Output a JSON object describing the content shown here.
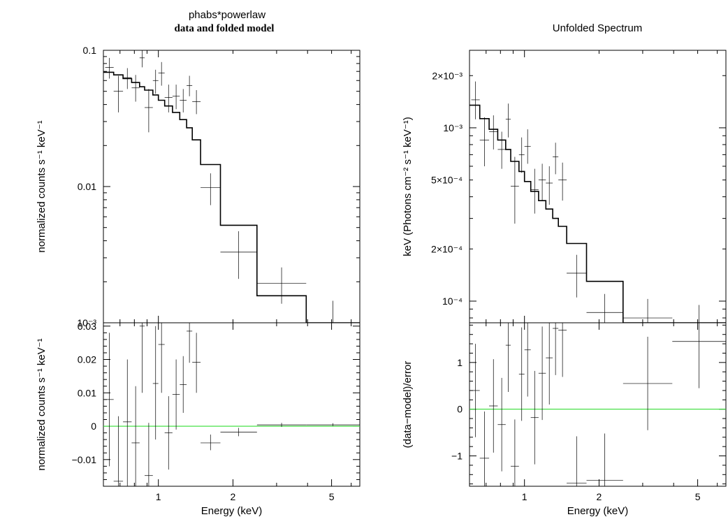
{
  "titles": {
    "left_main": "phabs*powerlaw",
    "left_sub": "data and folded model",
    "right_main": "Unfolded Spectrum"
  },
  "chart_data": [
    {
      "id": "tl",
      "type": "scatter",
      "xscale": "log",
      "yscale": "log",
      "xlim": [
        0.6,
        6.5
      ],
      "ylim": [
        0.001,
        0.1
      ],
      "xlabel": "",
      "ylabel": "normalized counts s⁻¹ keV⁻¹",
      "yticks": [
        {
          "v": 0.1,
          "label": "0.1"
        },
        {
          "v": 0.01,
          "label": "0.01"
        },
        {
          "v": 0.001,
          "label": "10⁻³"
        }
      ],
      "xticks": [],
      "data": [
        {
          "xlo": 0.61,
          "xhi": 0.66,
          "y": 0.075,
          "ylo": 0.062,
          "yhi": 0.088
        },
        {
          "xlo": 0.66,
          "xhi": 0.72,
          "y": 0.05,
          "ylo": 0.035,
          "yhi": 0.065
        },
        {
          "xlo": 0.72,
          "xhi": 0.78,
          "y": 0.063,
          "ylo": 0.052,
          "yhi": 0.074
        },
        {
          "xlo": 0.78,
          "xhi": 0.84,
          "y": 0.053,
          "ylo": 0.042,
          "yhi": 0.066
        },
        {
          "xlo": 0.84,
          "xhi": 0.88,
          "y": 0.088,
          "ylo": 0.075,
          "yhi": 0.1
        },
        {
          "xlo": 0.88,
          "xhi": 0.95,
          "y": 0.038,
          "ylo": 0.025,
          "yhi": 0.052
        },
        {
          "xlo": 0.95,
          "xhi": 1.0,
          "y": 0.06,
          "ylo": 0.048,
          "yhi": 0.072
        },
        {
          "xlo": 1.0,
          "xhi": 1.06,
          "y": 0.068,
          "ylo": 0.055,
          "yhi": 0.082
        },
        {
          "xlo": 1.06,
          "xhi": 1.14,
          "y": 0.045,
          "ylo": 0.035,
          "yhi": 0.056
        },
        {
          "xlo": 1.14,
          "xhi": 1.22,
          "y": 0.046,
          "ylo": 0.037,
          "yhi": 0.056
        },
        {
          "xlo": 1.22,
          "xhi": 1.3,
          "y": 0.043,
          "ylo": 0.035,
          "yhi": 0.052
        },
        {
          "xlo": 1.3,
          "xhi": 1.37,
          "y": 0.055,
          "ylo": 0.046,
          "yhi": 0.065
        },
        {
          "xlo": 1.37,
          "xhi": 1.48,
          "y": 0.042,
          "ylo": 0.034,
          "yhi": 0.051
        },
        {
          "xlo": 1.48,
          "xhi": 1.78,
          "y": 0.0098,
          "ylo": 0.0073,
          "yhi": 0.0125
        },
        {
          "xlo": 1.78,
          "xhi": 2.5,
          "y": 0.0033,
          "ylo": 0.0021,
          "yhi": 0.0047
        },
        {
          "xlo": 2.5,
          "xhi": 3.95,
          "y": 0.00195,
          "ylo": 0.00138,
          "yhi": 0.00255
        },
        {
          "xlo": 3.95,
          "xhi": 6.5,
          "y": 0.00095,
          "ylo": 0.0007,
          "yhi": 0.00145
        }
      ],
      "model": {
        "edges": [
          0.6,
          0.66,
          0.72,
          0.78,
          0.84,
          0.88,
          0.95,
          1.0,
          1.06,
          1.14,
          1.22,
          1.3,
          1.37,
          1.48,
          1.78,
          2.5,
          3.95
        ],
        "values": [
          0.069,
          0.066,
          0.062,
          0.058,
          0.054,
          0.051,
          0.047,
          0.043,
          0.039,
          0.035,
          0.031,
          0.027,
          0.022,
          0.0145,
          0.0052,
          0.00158,
          0.001
        ]
      }
    },
    {
      "id": "bl",
      "type": "scatter",
      "xscale": "log",
      "yscale": "linear",
      "xlim": [
        0.6,
        6.5
      ],
      "ylim": [
        -0.018,
        0.031
      ],
      "xlabel": "Energy (keV)",
      "ylabel": "normalized counts s⁻¹ keV⁻¹",
      "yticks": [
        {
          "v": 0.03,
          "label": "0.03"
        },
        {
          "v": 0.02,
          "label": "0.02"
        },
        {
          "v": 0.01,
          "label": "0.01"
        },
        {
          "v": 0,
          "label": "0"
        },
        {
          "v": -0.01,
          "label": "−0.01"
        }
      ],
      "xticks": [
        {
          "v": 1,
          "label": "1"
        },
        {
          "v": 2,
          "label": "2"
        },
        {
          "v": 5,
          "label": "5"
        }
      ],
      "zero_line": 0,
      "data": [
        {
          "xlo": 0.61,
          "xhi": 0.66,
          "y": 0.008,
          "ylo": -0.012,
          "yhi": 0.028
        },
        {
          "xlo": 0.66,
          "xhi": 0.72,
          "y": -0.0165,
          "ylo": -0.035,
          "yhi": 0.003
        },
        {
          "xlo": 0.72,
          "xhi": 0.78,
          "y": 0.0013,
          "ylo": -0.018,
          "yhi": 0.02
        },
        {
          "xlo": 0.78,
          "xhi": 0.84,
          "y": -0.005,
          "ylo": -0.022,
          "yhi": 0.012
        },
        {
          "xlo": 0.84,
          "xhi": 0.88,
          "y": 0.03,
          "ylo": 0.01,
          "yhi": 0.05
        },
        {
          "xlo": 0.88,
          "xhi": 0.95,
          "y": -0.0148,
          "ylo": -0.03,
          "yhi": 0.001
        },
        {
          "xlo": 0.95,
          "xhi": 1.0,
          "y": 0.0128,
          "ylo": -0.004,
          "yhi": 0.03
        },
        {
          "xlo": 1.0,
          "xhi": 1.06,
          "y": 0.0245,
          "ylo": 0.01,
          "yhi": 0.039
        },
        {
          "xlo": 1.06,
          "xhi": 1.14,
          "y": -0.002,
          "ylo": -0.013,
          "yhi": 0.009
        },
        {
          "xlo": 1.14,
          "xhi": 1.22,
          "y": 0.0095,
          "ylo": -0.001,
          "yhi": 0.02
        },
        {
          "xlo": 1.22,
          "xhi": 1.3,
          "y": 0.0125,
          "ylo": 0.004,
          "yhi": 0.021
        },
        {
          "xlo": 1.3,
          "xhi": 1.37,
          "y": 0.0285,
          "ylo": 0.019,
          "yhi": 0.038
        },
        {
          "xlo": 1.37,
          "xhi": 1.48,
          "y": 0.0192,
          "ylo": 0.01,
          "yhi": 0.028
        },
        {
          "xlo": 1.48,
          "xhi": 1.78,
          "y": -0.005,
          "ylo": -0.0072,
          "yhi": -0.0025
        },
        {
          "xlo": 1.78,
          "xhi": 2.5,
          "y": -0.0018,
          "ylo": -0.003,
          "yhi": -0.0005
        },
        {
          "xlo": 2.5,
          "xhi": 3.95,
          "y": 0.0004,
          "ylo": -0.0002,
          "yhi": 0.001
        },
        {
          "xlo": 3.95,
          "xhi": 6.5,
          "y": 0.0004,
          "ylo": 0.0001,
          "yhi": 0.0009
        }
      ]
    },
    {
      "id": "tr",
      "type": "scatter",
      "xscale": "log",
      "yscale": "log",
      "xlim": [
        0.6,
        6.5
      ],
      "ylim": [
        7.5e-05,
        0.0028
      ],
      "xlabel": "",
      "ylabel": "keV (Photons cm⁻² s⁻¹ keV⁻¹)",
      "yticks": [
        {
          "v": 0.002,
          "label": "2×10⁻³"
        },
        {
          "v": 0.001,
          "label": "10⁻³"
        },
        {
          "v": 0.0005,
          "label": "5×10⁻⁴"
        },
        {
          "v": 0.0002,
          "label": "2×10⁻⁴"
        },
        {
          "v": 0.0001,
          "label": "10⁻⁴"
        }
      ],
      "xticks": [],
      "data": [
        {
          "xlo": 0.61,
          "xhi": 0.66,
          "y": 0.00145,
          "ylo": 0.00112,
          "yhi": 0.00185
        },
        {
          "xlo": 0.66,
          "xhi": 0.72,
          "y": 0.00085,
          "ylo": 0.0006,
          "yhi": 0.00115
        },
        {
          "xlo": 0.72,
          "xhi": 0.78,
          "y": 0.00095,
          "ylo": 0.00075,
          "yhi": 0.00118
        },
        {
          "xlo": 0.78,
          "xhi": 0.84,
          "y": 0.00075,
          "ylo": 0.00058,
          "yhi": 0.00095
        },
        {
          "xlo": 0.84,
          "xhi": 0.88,
          "y": 0.00112,
          "ylo": 0.00088,
          "yhi": 0.00138
        },
        {
          "xlo": 0.88,
          "xhi": 0.95,
          "y": 0.00046,
          "ylo": 0.00028,
          "yhi": 0.00068
        },
        {
          "xlo": 0.95,
          "xhi": 1.0,
          "y": 0.0007,
          "ylo": 0.00055,
          "yhi": 0.00088
        },
        {
          "xlo": 1.0,
          "xhi": 1.06,
          "y": 0.00078,
          "ylo": 0.00062,
          "yhi": 0.00098
        },
        {
          "xlo": 1.06,
          "xhi": 1.14,
          "y": 0.00044,
          "ylo": 0.00032,
          "yhi": 0.00058
        },
        {
          "xlo": 1.14,
          "xhi": 1.22,
          "y": 0.0005,
          "ylo": 0.00038,
          "yhi": 0.00062
        },
        {
          "xlo": 1.22,
          "xhi": 1.3,
          "y": 0.00048,
          "ylo": 0.00036,
          "yhi": 0.0006
        },
        {
          "xlo": 1.3,
          "xhi": 1.37,
          "y": 0.00068,
          "ylo": 0.00054,
          "yhi": 0.00082
        },
        {
          "xlo": 1.37,
          "xhi": 1.48,
          "y": 0.0005,
          "ylo": 0.00038,
          "yhi": 0.00063
        },
        {
          "xlo": 1.48,
          "xhi": 1.78,
          "y": 0.000145,
          "ylo": 0.000105,
          "yhi": 0.000185
        },
        {
          "xlo": 1.78,
          "xhi": 2.5,
          "y": 8.6e-05,
          "ylo": 5e-05,
          "yhi": 0.00011
        },
        {
          "xlo": 2.5,
          "xhi": 3.95,
          "y": 8e-05,
          "ylo": 5e-05,
          "yhi": 0.000103
        },
        {
          "xlo": 3.95,
          "xhi": 6.5,
          "y": 7.5e-05,
          "ylo": 5e-05,
          "yhi": 9.5e-05
        }
      ],
      "model": {
        "edges": [
          0.6,
          0.66,
          0.72,
          0.78,
          0.84,
          0.88,
          0.95,
          1.0,
          1.06,
          1.14,
          1.22,
          1.3,
          1.37,
          1.48,
          1.78,
          2.5
        ],
        "values": [
          0.00135,
          0.00113,
          0.00098,
          0.00085,
          0.00075,
          0.00064,
          0.00056,
          0.00049,
          0.00043,
          0.00038,
          0.00034,
          0.0003,
          0.00027,
          0.000215,
          0.00013,
          7.5e-05
        ]
      }
    },
    {
      "id": "br",
      "type": "scatter",
      "xscale": "log",
      "yscale": "linear",
      "xlim": [
        0.6,
        6.5
      ],
      "ylim": [
        -1.65,
        1.85
      ],
      "xlabel": "Energy (keV)",
      "ylabel": "(data−model)/error",
      "yticks": [
        {
          "v": 1,
          "label": "1"
        },
        {
          "v": 0,
          "label": "0"
        },
        {
          "v": -1,
          "label": "−1"
        }
      ],
      "xticks": [
        {
          "v": 1,
          "label": "1"
        },
        {
          "v": 2,
          "label": "2"
        },
        {
          "v": 5,
          "label": "5"
        }
      ],
      "zero_line": 0,
      "data": [
        {
          "xlo": 0.61,
          "xhi": 0.66,
          "y": 0.4,
          "ylo": -0.6,
          "yhi": 1.4
        },
        {
          "xlo": 0.66,
          "xhi": 0.72,
          "y": -1.05,
          "ylo": -2.05,
          "yhi": -0.05
        },
        {
          "xlo": 0.72,
          "xhi": 0.78,
          "y": 0.07,
          "ylo": -0.93,
          "yhi": 1.07
        },
        {
          "xlo": 0.78,
          "xhi": 0.84,
          "y": -0.33,
          "ylo": -1.33,
          "yhi": 0.67
        },
        {
          "xlo": 0.84,
          "xhi": 0.88,
          "y": 1.37,
          "ylo": 0.37,
          "yhi": 2.37
        },
        {
          "xlo": 0.88,
          "xhi": 0.95,
          "y": -1.22,
          "ylo": -2.22,
          "yhi": -0.22
        },
        {
          "xlo": 0.95,
          "xhi": 1.0,
          "y": 0.75,
          "ylo": -0.25,
          "yhi": 1.75
        },
        {
          "xlo": 1.0,
          "xhi": 1.06,
          "y": 1.27,
          "ylo": 0.27,
          "yhi": 2.27
        },
        {
          "xlo": 1.06,
          "xhi": 1.14,
          "y": -0.18,
          "ylo": -1.18,
          "yhi": 0.82
        },
        {
          "xlo": 1.14,
          "xhi": 1.22,
          "y": 0.77,
          "ylo": -0.23,
          "yhi": 1.77
        },
        {
          "xlo": 1.22,
          "xhi": 1.3,
          "y": 1.1,
          "ylo": 0.1,
          "yhi": 2.1
        },
        {
          "xlo": 1.3,
          "xhi": 1.37,
          "y": 1.73,
          "ylo": 0.73,
          "yhi": 2.73
        },
        {
          "xlo": 1.37,
          "xhi": 1.48,
          "y": 1.69,
          "ylo": 0.69,
          "yhi": 2.69
        },
        {
          "xlo": 1.48,
          "xhi": 1.78,
          "y": -1.58,
          "ylo": -2.58,
          "yhi": -0.58
        },
        {
          "xlo": 1.78,
          "xhi": 2.5,
          "y": -1.52,
          "ylo": -2.52,
          "yhi": -0.52
        },
        {
          "xlo": 2.5,
          "xhi": 3.95,
          "y": 0.55,
          "ylo": -0.45,
          "yhi": 1.55
        },
        {
          "xlo": 3.95,
          "xhi": 6.5,
          "y": 1.45,
          "ylo": 0.45,
          "yhi": 2.45
        }
      ]
    }
  ]
}
